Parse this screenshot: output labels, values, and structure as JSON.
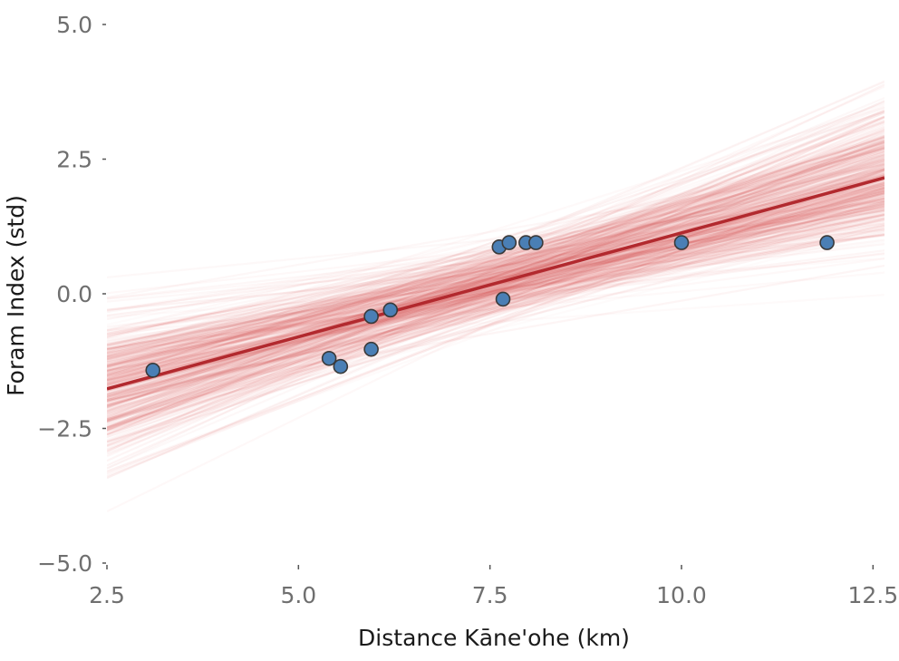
{
  "chart_data": {
    "type": "scatter",
    "title": "",
    "xlabel": "Distance Kāne'ohe (km)",
    "ylabel": "Foram Index (std)",
    "xlim": [
      2.5,
      12.65
    ],
    "ylim": [
      -5.0,
      5.0
    ],
    "x_ticks": [
      2.5,
      5.0,
      7.5,
      10.0,
      12.5
    ],
    "x_tick_labels": [
      "2.5",
      "5.0",
      "7.5",
      "10.0",
      "12.5"
    ],
    "y_ticks": [
      5.0,
      2.5,
      0.0,
      -2.5,
      -5.0
    ],
    "y_tick_labels": [
      "5.0",
      "2.5",
      "0.0",
      "−2.5",
      "−5.0"
    ],
    "grid": false,
    "points": [
      {
        "x": 3.1,
        "y": -1.42
      },
      {
        "x": 5.4,
        "y": -1.2
      },
      {
        "x": 5.55,
        "y": -1.35
      },
      {
        "x": 5.95,
        "y": -0.42
      },
      {
        "x": 5.95,
        "y": -1.03
      },
      {
        "x": 6.2,
        "y": -0.3
      },
      {
        "x": 7.62,
        "y": 0.87
      },
      {
        "x": 7.67,
        "y": -0.1
      },
      {
        "x": 7.75,
        "y": 0.95
      },
      {
        "x": 7.97,
        "y": 0.95
      },
      {
        "x": 8.1,
        "y": 0.95
      },
      {
        "x": 10.0,
        "y": 0.95
      },
      {
        "x": 11.9,
        "y": 0.95
      }
    ],
    "mean_line": {
      "intercept": -2.73,
      "slope": 0.386
    },
    "posterior_samples": {
      "count": 400,
      "intercept_sd": 0.9,
      "slope_sd": 0.12,
      "seed": 7
    },
    "colors": {
      "point_fill": "#4a7fb5",
      "point_edge": "#3a3a3a",
      "mean_line": "#b2292e",
      "sample_line": "#d64545"
    }
  }
}
